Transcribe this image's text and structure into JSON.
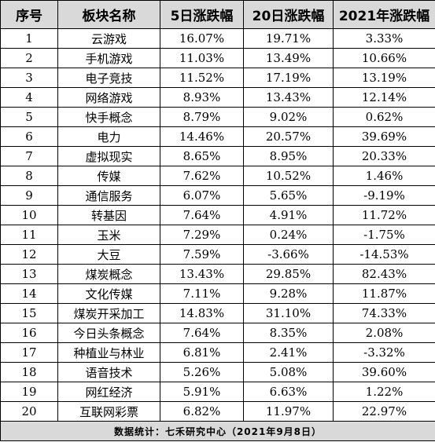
{
  "chart_data": {
    "type": "table",
    "columns": [
      "序号",
      "板块名称",
      "5日涨跌幅",
      "20日涨跌幅",
      "2021年涨跌幅"
    ],
    "rows": [
      [
        "1",
        "云游戏",
        "16.07%",
        "19.71%",
        "3.33%"
      ],
      [
        "2",
        "手机游戏",
        "11.03%",
        "13.49%",
        "10.66%"
      ],
      [
        "3",
        "电子竞技",
        "11.52%",
        "17.19%",
        "13.19%"
      ],
      [
        "4",
        "网络游戏",
        "8.93%",
        "13.43%",
        "12.14%"
      ],
      [
        "5",
        "快手概念",
        "8.79%",
        "9.02%",
        "0.62%"
      ],
      [
        "6",
        "电力",
        "14.46%",
        "20.57%",
        "39.69%"
      ],
      [
        "7",
        "虚拟现实",
        "8.65%",
        "8.95%",
        "20.33%"
      ],
      [
        "8",
        "传媒",
        "7.62%",
        "10.52%",
        "1.46%"
      ],
      [
        "9",
        "通信服务",
        "6.07%",
        "5.65%",
        "-9.19%"
      ],
      [
        "10",
        "转基因",
        "7.64%",
        "4.91%",
        "11.72%"
      ],
      [
        "11",
        "玉米",
        "7.29%",
        "0.24%",
        "-1.75%"
      ],
      [
        "12",
        "大豆",
        "7.59%",
        "-3.66%",
        "-14.53%"
      ],
      [
        "13",
        "煤炭概念",
        "13.43%",
        "29.85%",
        "82.43%"
      ],
      [
        "14",
        "文化传媒",
        "7.11%",
        "9.28%",
        "11.87%"
      ],
      [
        "15",
        "煤炭开采加工",
        "14.83%",
        "31.10%",
        "74.33%"
      ],
      [
        "16",
        "今日头条概念",
        "7.64%",
        "8.35%",
        "2.08%"
      ],
      [
        "17",
        "种植业与林业",
        "6.81%",
        "2.41%",
        "-3.32%"
      ],
      [
        "18",
        "语音技术",
        "5.26%",
        "5.08%",
        "39.60%"
      ],
      [
        "19",
        "网红经济",
        "5.91%",
        "6.63%",
        "1.22%"
      ],
      [
        "20",
        "互联网彩票",
        "6.82%",
        "11.97%",
        "22.97%"
      ]
    ],
    "footer": "数据统计：七禾研究中心（2021年9月8日）"
  },
  "colors": {
    "header_bg": "#d9d9d9",
    "footer_bg": "#d9d9d9",
    "border": "#000000",
    "text": "#000000"
  }
}
